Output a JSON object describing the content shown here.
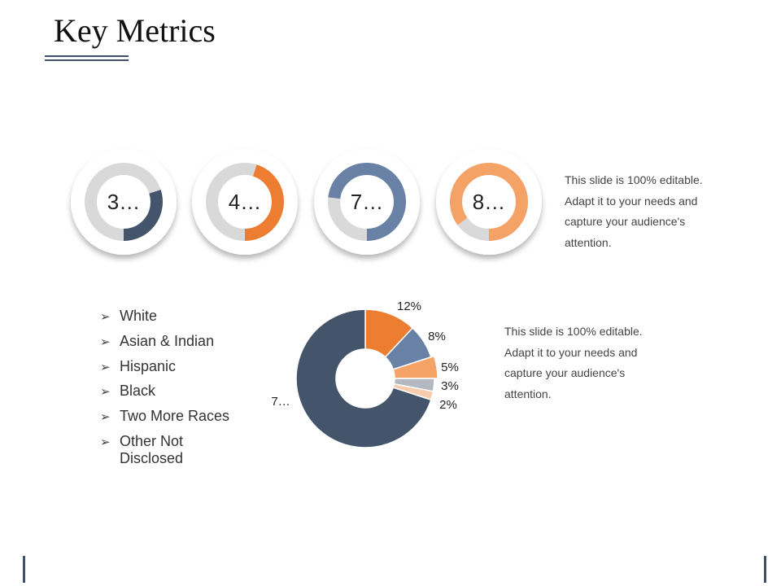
{
  "slide": {
    "title": "Key Metrics",
    "description_top": "This slide is 100% editable. Adapt it to your needs and capture your audience's attention.",
    "description_bottom": "This slide is 100% editable. Adapt it to your needs and capture your audience's attention."
  },
  "colors": {
    "dark": "#44546a",
    "orange": "#ed7d31",
    "steel": "#6a81a6",
    "light_orange": "#f4a266",
    "track": "#d9d9d9",
    "pale_gray": "#b4b8c0",
    "peach": "#f8cbad"
  },
  "chart_data": [
    {
      "type": "donut-gauges",
      "gauges": [
        {
          "label": "3…",
          "value": 0.3,
          "color": "#44546a"
        },
        {
          "label": "4…",
          "value": 0.45,
          "color": "#ed7d31"
        },
        {
          "label": "7…",
          "value": 0.73,
          "color": "#6a81a6"
        },
        {
          "label": "8…",
          "value": 0.85,
          "color": "#f4a266"
        }
      ]
    },
    {
      "type": "pie",
      "categories": [
        "White",
        "Asian & Indian",
        "Hispanic",
        "Black",
        "Two More Races",
        "Other Not Disclosed"
      ],
      "values": [
        70,
        12,
        8,
        5,
        3,
        2
      ],
      "labels": [
        "7…",
        "12%",
        "8%",
        "5%",
        "3%",
        "2%"
      ],
      "colors": [
        "#44546a",
        "#ed7d31",
        "#6a81a6",
        "#f4a266",
        "#b4b8c0",
        "#f8cbad"
      ]
    }
  ]
}
